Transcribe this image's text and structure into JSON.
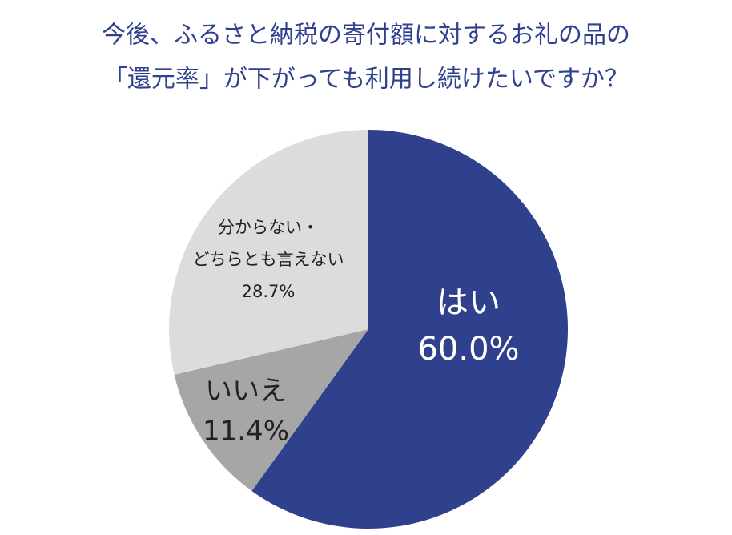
{
  "chart_data": {
    "type": "pie",
    "title": [
      "今後、ふるさと納税の寄付額に対するお礼の品の",
      "「還元率」が下がっても利用し続けたいですか？"
    ],
    "categories": [
      "はい",
      "いいえ",
      [
        "分からない・",
        "どちらとも言えない"
      ]
    ],
    "values": [
      60.0,
      11.4,
      28.7
    ],
    "value_labels": [
      "60.0%",
      "11.4%",
      "28.7%"
    ],
    "colors": [
      "#2f418d",
      "#a6a6a6",
      "#dcdcdc"
    ]
  }
}
